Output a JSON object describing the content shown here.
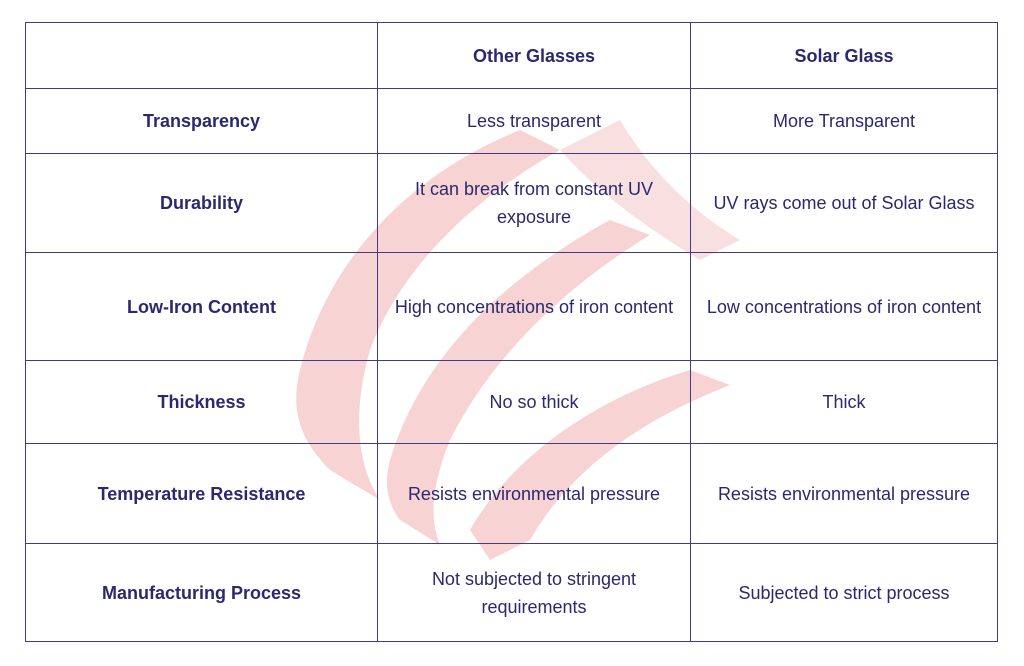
{
  "table": {
    "columns": [
      "Other Glasses",
      "Solar Glass"
    ],
    "rows": [
      [
        "Transparency",
        "Less transparent",
        "More Transparent"
      ],
      [
        "Durability",
        "It can break from constant UV exposure",
        "UV rays come out of Solar Glass"
      ],
      [
        "Low-Iron Content",
        "High concentrations of iron content",
        "Low concentrations of iron content"
      ],
      [
        "Thickness",
        "No so thick",
        "Thick"
      ],
      [
        "Temperature Resistance",
        "Resists environmental pressure",
        "Resists environmental pressure"
      ],
      [
        "Manufacturing Process",
        "Not subjected to stringent requirements",
        "Subjected to strict process"
      ]
    ]
  }
}
